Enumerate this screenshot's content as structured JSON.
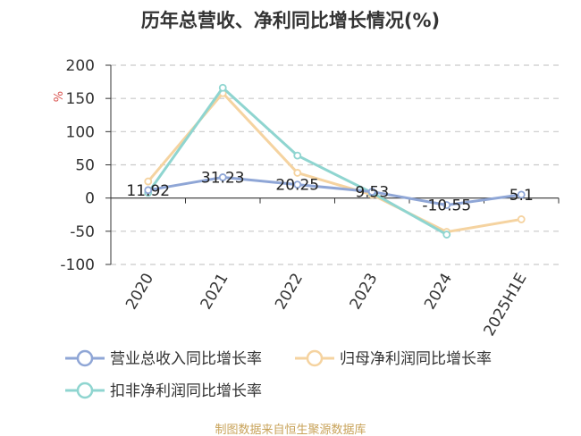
{
  "chart_data": {
    "type": "line",
    "title": "历年总营收、净利同比增长情况(%)",
    "ylabel": "%",
    "xlabel": "",
    "categories": [
      "2020",
      "2021",
      "2022",
      "2023",
      "2024",
      "2025H1E"
    ],
    "ylim": [
      -100,
      200
    ],
    "yticks": [
      200,
      150,
      100,
      50,
      0,
      -50,
      -100
    ],
    "grid": true,
    "legend_position": "bottom-left",
    "series": [
      {
        "name": "营业总收入同比增长率",
        "color": "#8fa6d6",
        "values": [
          11.92,
          31.23,
          20.25,
          9.53,
          -10.55,
          5.1
        ],
        "labels": [
          "11.92",
          "31.23",
          "20.25",
          "9.53",
          "-10.55",
          "5.1"
        ]
      },
      {
        "name": "归母净利润同比增长率",
        "color": "#f5d3a0",
        "values": [
          25,
          158,
          38,
          5,
          -51,
          -32
        ]
      },
      {
        "name": "扣非净利润同比增长率",
        "color": "#8fd5d0",
        "values": [
          8,
          166,
          64,
          8,
          -55,
          null
        ]
      }
    ]
  },
  "footer": {
    "source": "制图数据来自恒生聚源数据库"
  }
}
